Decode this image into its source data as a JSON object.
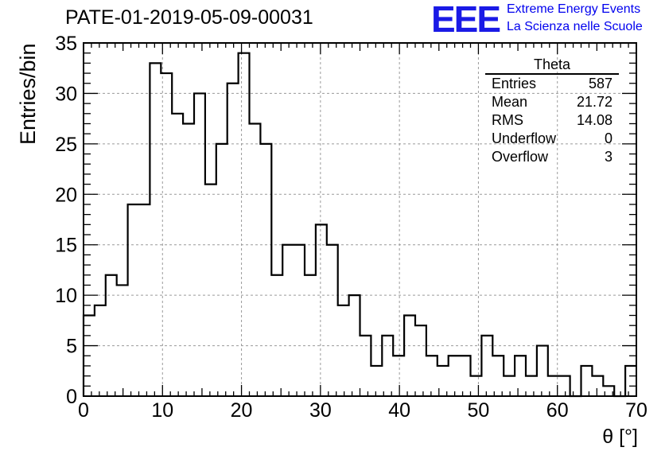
{
  "header": {
    "run_title": "PATE-01-2019-05-09-00031",
    "logo_text": "EEE",
    "logo_line1": "Extreme Energy Events",
    "logo_line2": "La Scienza nelle Scuole"
  },
  "stats_box": {
    "title": "Theta",
    "rows": [
      {
        "label": "Entries",
        "value": "587"
      },
      {
        "label": "Mean",
        "value": "21.72"
      },
      {
        "label": "RMS",
        "value": "14.08"
      },
      {
        "label": "Underflow",
        "value": "0"
      },
      {
        "label": "Overflow",
        "value": "3"
      }
    ]
  },
  "colors": {
    "line": "#000000",
    "grid": "#9a9a9a",
    "logo": "#1a1ae6",
    "logo_text": "#0000ee"
  },
  "chart_data": {
    "type": "bar",
    "style": "step-histogram",
    "xlabel": "θ [°]",
    "ylabel": "Entries/bin",
    "xlim": [
      0,
      70
    ],
    "ylim": [
      0,
      35
    ],
    "x_ticks": [
      0,
      10,
      20,
      30,
      40,
      50,
      60,
      70
    ],
    "y_ticks": [
      0,
      5,
      10,
      15,
      20,
      25,
      30,
      35
    ],
    "grid": true,
    "bin_width": 1.4,
    "values": [
      8,
      9,
      12,
      11,
      19,
      19,
      33,
      32,
      28,
      27,
      30,
      21,
      25,
      31,
      34,
      27,
      25,
      12,
      15,
      15,
      12,
      17,
      15,
      9,
      10,
      6,
      3,
      6,
      4,
      8,
      7,
      4,
      3,
      4,
      4,
      2,
      6,
      4,
      2,
      4,
      2,
      5,
      2,
      2,
      0,
      3,
      2,
      1,
      0,
      3
    ]
  }
}
